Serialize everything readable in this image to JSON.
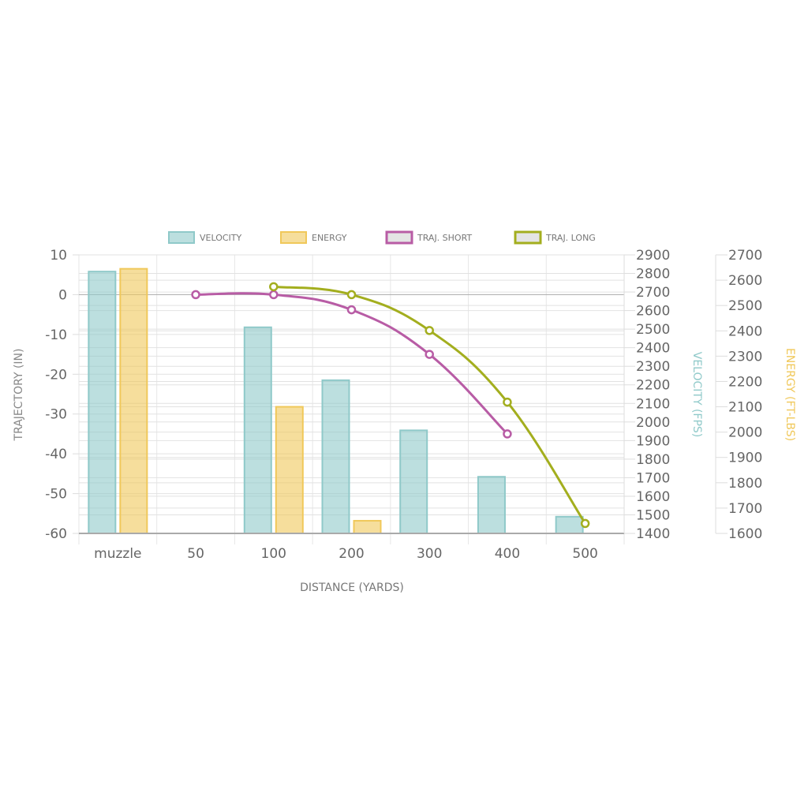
{
  "chart_data": {
    "type": "bar",
    "categories": [
      "muzzle",
      "50",
      "100",
      "200",
      "300",
      "400",
      "500"
    ],
    "xlabel": "DISTANCE (YARDS)",
    "legend_position": "top",
    "grid": true,
    "axes": {
      "trajectory": {
        "label": "TRAJECTORY (IN)",
        "side": "left",
        "range": [
          -60,
          10
        ],
        "ticks": [
          10,
          0,
          -10,
          -20,
          -30,
          -40,
          -50,
          -60
        ]
      },
      "velocity": {
        "label": "VELOCITY (FPS)",
        "side": "right",
        "range": [
          1400,
          2900
        ],
        "ticks": [
          2900,
          2800,
          2700,
          2600,
          2500,
          2400,
          2300,
          2200,
          2100,
          2000,
          1900,
          1800,
          1700,
          1600,
          1500,
          1400
        ],
        "color": "#8fc9c9"
      },
      "energy": {
        "label": "ENERGY (FT-LBS)",
        "side": "right",
        "range": [
          1600,
          2700
        ],
        "ticks": [
          2700,
          2600,
          2500,
          2400,
          2300,
          2200,
          2100,
          2000,
          1900,
          1800,
          1700,
          1600
        ],
        "color": "#f0c85a"
      }
    },
    "series": [
      {
        "name": "VELOCITY",
        "type": "bar",
        "axis": "velocity",
        "color": "#8fc9c9",
        "values": [
          2810,
          null,
          2510,
          2225,
          1955,
          1705,
          1490
        ]
      },
      {
        "name": "ENERGY",
        "type": "bar",
        "axis": "energy",
        "color": "#f0c85a",
        "values": [
          2645,
          null,
          2100,
          1650,
          null,
          null,
          null
        ]
      },
      {
        "name": "TRAJ. SHORT",
        "type": "line",
        "axis": "trajectory",
        "color": "#b85ca5",
        "values": [
          null,
          0,
          0,
          -3.8,
          -15,
          -35,
          null
        ]
      },
      {
        "name": "TRAJ. LONG",
        "type": "line",
        "axis": "trajectory",
        "color": "#a3ae1e",
        "values": [
          null,
          null,
          2,
          0,
          -9,
          -27,
          -57.5
        ]
      }
    ]
  }
}
